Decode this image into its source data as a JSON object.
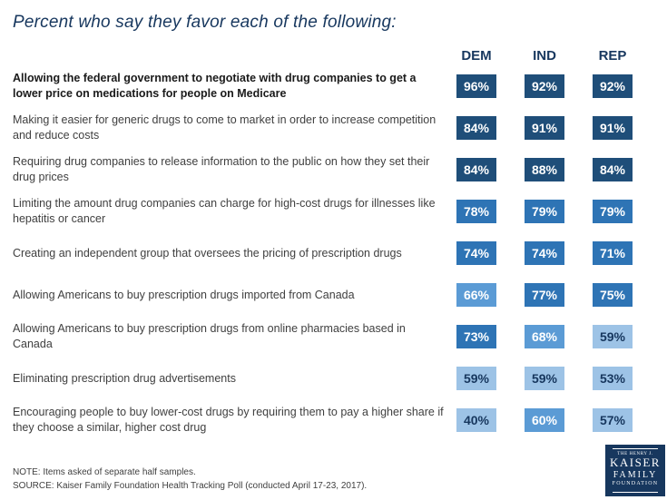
{
  "chart_data": {
    "type": "heatmap",
    "title": "Percent who say they favor each of the following:",
    "column_headers": [
      "DEM",
      "IND",
      "REP"
    ],
    "value_suffix": "%",
    "rows": [
      {
        "label": "Allowing the federal government to negotiate with drug companies to get a lower price on medications for people on Medicare",
        "bold": true,
        "values": [
          96,
          92,
          92
        ]
      },
      {
        "label": "Making it easier for generic drugs to come to market in order to increase competition and reduce costs",
        "bold": false,
        "values": [
          84,
          91,
          91
        ]
      },
      {
        "label": "Requiring drug companies to release information to the public on how they set their drug prices",
        "bold": false,
        "values": [
          84,
          88,
          84
        ]
      },
      {
        "label": "Limiting the amount drug companies can charge for high-cost drugs for illnesses like hepatitis or cancer",
        "bold": false,
        "values": [
          78,
          79,
          79
        ]
      },
      {
        "label": "Creating an independent group that oversees the pricing of prescription drugs",
        "bold": false,
        "values": [
          74,
          74,
          71
        ]
      },
      {
        "label": "Allowing Americans to buy prescription drugs imported from Canada",
        "bold": false,
        "values": [
          66,
          77,
          75
        ]
      },
      {
        "label": "Allowing Americans to buy prescription drugs from online pharmacies based in Canada",
        "bold": false,
        "values": [
          73,
          68,
          59
        ]
      },
      {
        "label": "Eliminating prescription drug advertisements",
        "bold": false,
        "values": [
          59,
          59,
          53
        ]
      },
      {
        "label": "Encouraging people to buy lower-cost drugs by requiring them to pay a higher share if they choose a similar, higher cost drug",
        "bold": false,
        "values": [
          40,
          60,
          57
        ]
      }
    ],
    "tone_thresholds": {
      "dark_min": 80,
      "medium_min": 70,
      "medium_light_min": 60
    },
    "colors": {
      "dark": "#1F4E79",
      "medium": "#2E74B5",
      "medium_light": "#5B9BD5",
      "light": "#9DC3E6",
      "cell_text": "#FFFFFF",
      "cell_text_light_bg": "#17375E",
      "header_text": "#17375E"
    }
  },
  "footer": {
    "note": "NOTE: Items asked of separate half samples.",
    "source": "SOURCE: Kaiser Family Foundation Health Tracking Poll (conducted April 17-23, 2017)."
  },
  "logo": {
    "line1": "THE HENRY J.",
    "line2": "KAISER",
    "line3": "FAMILY",
    "line4": "FOUNDATION"
  }
}
